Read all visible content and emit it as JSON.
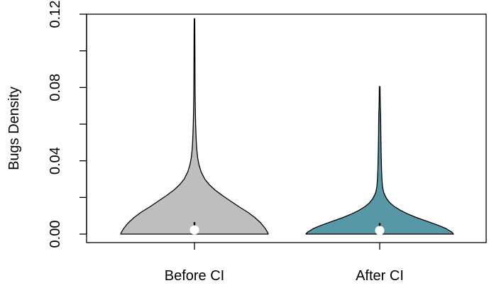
{
  "chart_data": {
    "type": "violin",
    "ylabel": "Bugs Density",
    "ylim": [
      0,
      0.12
    ],
    "yticks": [
      0,
      0.04,
      0.08,
      0.12
    ],
    "ytick_labels": [
      "0.00",
      "0.04",
      "0.08",
      "0.12"
    ],
    "categories": [
      "Before CI",
      "After CI"
    ],
    "series": [
      {
        "category": "Before CI",
        "color": "#bebebe",
        "min": 0.0,
        "max": 0.1175,
        "median": 0.0015,
        "q1": 0.0,
        "q3": 0.0065,
        "profile": [
          [
            0.0,
            1.0
          ],
          [
            0.001,
            0.99
          ],
          [
            0.003,
            0.96
          ],
          [
            0.006,
            0.9
          ],
          [
            0.009,
            0.82
          ],
          [
            0.012,
            0.72
          ],
          [
            0.015,
            0.6
          ],
          [
            0.018,
            0.49
          ],
          [
            0.021,
            0.38
          ],
          [
            0.024,
            0.28
          ],
          [
            0.027,
            0.2
          ],
          [
            0.03,
            0.14
          ],
          [
            0.034,
            0.09
          ],
          [
            0.038,
            0.06
          ],
          [
            0.042,
            0.042
          ],
          [
            0.046,
            0.032
          ],
          [
            0.05,
            0.025
          ],
          [
            0.055,
            0.02
          ],
          [
            0.06,
            0.016
          ],
          [
            0.065,
            0.013
          ],
          [
            0.07,
            0.011
          ],
          [
            0.075,
            0.009
          ],
          [
            0.08,
            0.008
          ],
          [
            0.085,
            0.0075
          ],
          [
            0.09,
            0.007
          ],
          [
            0.095,
            0.0065
          ],
          [
            0.1,
            0.006
          ],
          [
            0.105,
            0.0055
          ],
          [
            0.11,
            0.005
          ],
          [
            0.114,
            0.0045
          ],
          [
            0.1175,
            0.0035
          ]
        ]
      },
      {
        "category": "After CI",
        "color": "#5898a6",
        "min": 0.0,
        "max": 0.0805,
        "median": 0.0012,
        "q1": 0.0,
        "q3": 0.006,
        "profile": [
          [
            0.0,
            1.0
          ],
          [
            0.001,
            0.98
          ],
          [
            0.003,
            0.9
          ],
          [
            0.005,
            0.78
          ],
          [
            0.007,
            0.64
          ],
          [
            0.009,
            0.5
          ],
          [
            0.011,
            0.38
          ],
          [
            0.013,
            0.28
          ],
          [
            0.015,
            0.2
          ],
          [
            0.017,
            0.14
          ],
          [
            0.019,
            0.1
          ],
          [
            0.021,
            0.072
          ],
          [
            0.023,
            0.052
          ],
          [
            0.026,
            0.038
          ],
          [
            0.03,
            0.03
          ],
          [
            0.035,
            0.025
          ],
          [
            0.04,
            0.022
          ],
          [
            0.045,
            0.019
          ],
          [
            0.05,
            0.017
          ],
          [
            0.055,
            0.015
          ],
          [
            0.06,
            0.014
          ],
          [
            0.065,
            0.012
          ],
          [
            0.07,
            0.008
          ],
          [
            0.075,
            0.006
          ],
          [
            0.0805,
            0.0045
          ]
        ]
      }
    ]
  }
}
